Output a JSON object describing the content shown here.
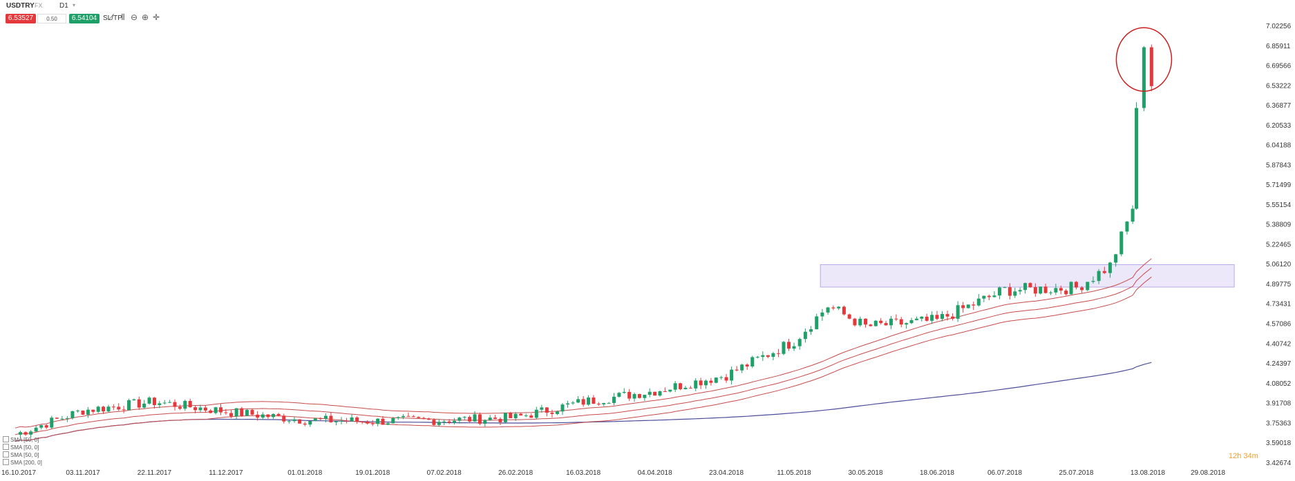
{
  "toolbar": {
    "symbol": "USDTRY",
    "symbol_sub": "FX",
    "timeframe": "D1",
    "sell_price": "6.53527",
    "spread": "0.50",
    "buy_price": "6.54104",
    "sltp_label": "SL/TP",
    "icons": [
      "line-chart-icon",
      "candles-icon",
      "zoom-out-icon",
      "zoom-in-icon",
      "crosshair-icon"
    ]
  },
  "indicators": [
    "SMA [50, 0]",
    "SMA [50, 0]",
    "SMA [50, 0]",
    "SMA [200, 0]"
  ],
  "timer": "12h 34m",
  "colors": {
    "bull": "#1fa068",
    "bear": "#e5383b",
    "ma_red": "#c94a4a",
    "ma_purple": "#4b4d9a",
    "zone": "#e6e0f8",
    "circle": "#c81e1e"
  },
  "chart_data": {
    "type": "candlestick",
    "symbol": "USDTRY",
    "timeframe": "D1",
    "y_ticks": [
      "7.02256",
      "6.85911",
      "6.69566",
      "6.53222",
      "6.36877",
      "6.20533",
      "6.04188",
      "5.87843",
      "5.71499",
      "5.55154",
      "5.38809",
      "5.22465",
      "5.06120",
      "4.89775",
      "4.73431",
      "4.57086",
      "4.40742",
      "4.24397",
      "4.08052",
      "3.91708",
      "3.75363",
      "3.59018",
      "3.42674"
    ],
    "x_ticks": [
      "16.10.2017",
      "03.11.2017",
      "22.11.2017",
      "11.12.2017",
      "01.01.2018",
      "19.01.2018",
      "07.02.2018",
      "26.02.2018",
      "16.03.2018",
      "04.04.2018",
      "23.04.2018",
      "11.05.2018",
      "30.05.2018",
      "18.06.2018",
      "06.07.2018",
      "25.07.2018",
      "13.08.2018",
      "29.08.2018"
    ],
    "ylim": [
      3.38,
      7.16
    ],
    "zone": {
      "from_date": "18.05.2018",
      "to_date": "05.09.2018",
      "low": 4.875,
      "high": 5.06
    },
    "circle": {
      "date": "12.08.2018",
      "center_price": 6.75,
      "note": "circled spike"
    },
    "key_points": [
      {
        "date": "16.10.2017",
        "close": 3.66
      },
      {
        "date": "03.11.2017",
        "close": 3.86
      },
      {
        "date": "22.11.2017",
        "close": 3.93
      },
      {
        "date": "11.12.2017",
        "close": 3.85
      },
      {
        "date": "01.01.2018",
        "close": 3.78
      },
      {
        "date": "19.01.2018",
        "close": 3.77
      },
      {
        "date": "07.02.2018",
        "close": 3.78
      },
      {
        "date": "26.02.2018",
        "close": 3.8
      },
      {
        "date": "16.03.2018",
        "close": 3.93
      },
      {
        "date": "04.04.2018",
        "close": 4.02
      },
      {
        "date": "23.04.2018",
        "close": 4.15
      },
      {
        "date": "11.05.2018",
        "close": 4.43
      },
      {
        "date": "20.05.2018",
        "close": 4.72
      },
      {
        "date": "30.05.2018",
        "close": 4.55
      },
      {
        "date": "18.06.2018",
        "close": 4.6
      },
      {
        "date": "06.07.2018",
        "close": 4.85
      },
      {
        "date": "25.07.2018",
        "close": 4.87
      },
      {
        "date": "03.08.2018",
        "close": 5.05
      },
      {
        "date": "09.08.2018",
        "close": 5.52
      },
      {
        "date": "10.08.2018",
        "close": 6.35
      },
      {
        "date": "12.08.2018",
        "close": 6.85
      },
      {
        "date": "14.08.2018",
        "close": 6.53
      }
    ]
  }
}
